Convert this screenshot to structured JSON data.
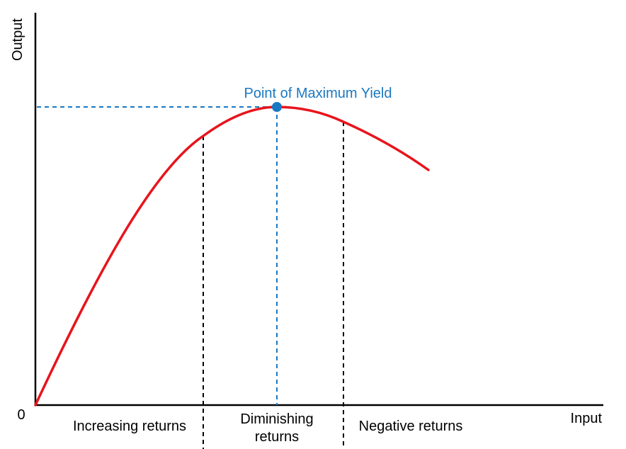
{
  "diagram": {
    "y_axis_label": "Output",
    "x_axis_label": "Input",
    "origin_label": "0",
    "peak_label": "Point of Maximum Yield",
    "regions": {
      "increasing": "Increasing returns",
      "diminishing_line1": "Diminishing",
      "diminishing_line2": "returns",
      "negative": "Negative returns"
    },
    "colors": {
      "axes": "#000000",
      "curve": "#e8141c",
      "peak": "#1a78c2",
      "boundary": "#000000"
    }
  }
}
